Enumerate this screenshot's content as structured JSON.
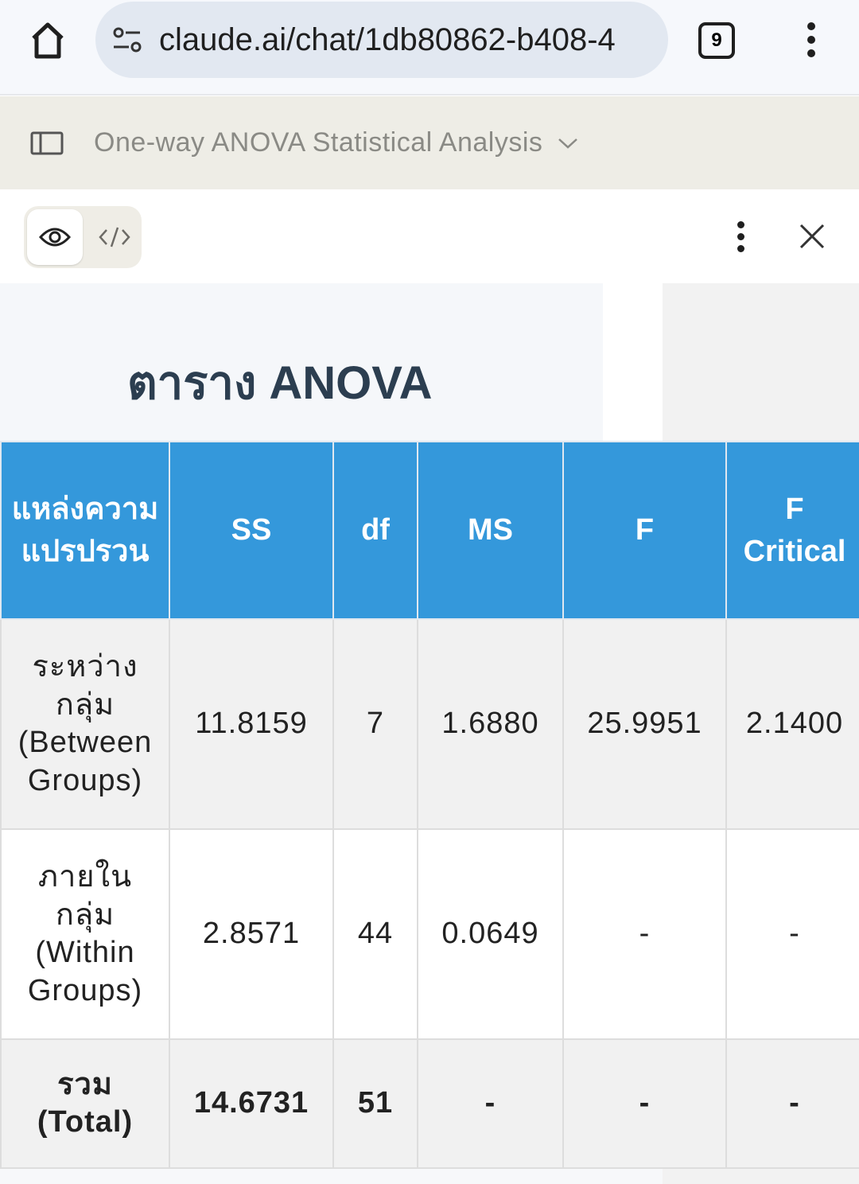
{
  "browser": {
    "url": "claude.ai/chat/1db80862-b408-4",
    "tab_count": "9"
  },
  "header": {
    "title": "One-way ANOVA Statistical Analysis"
  },
  "artifact": {
    "title": "ตาราง ANOVA"
  },
  "table": {
    "headers": [
      "แหล่งความแปรปรวน",
      "SS",
      "df",
      "MS",
      "F",
      "F Critical"
    ],
    "rows": [
      [
        "ระหว่างกลุ่ม (Between Groups)",
        "11.8159",
        "7",
        "1.6880",
        "25.9951",
        "2.1400"
      ],
      [
        "ภายในกลุ่ม (Within Groups)",
        "2.8571",
        "44",
        "0.0649",
        "-",
        "-"
      ],
      [
        "รวม (Total)",
        "14.6731",
        "51",
        "-",
        "-",
        "-"
      ]
    ]
  },
  "colors": {
    "header_bg": "#3498db",
    "title": "#2c3e50"
  }
}
